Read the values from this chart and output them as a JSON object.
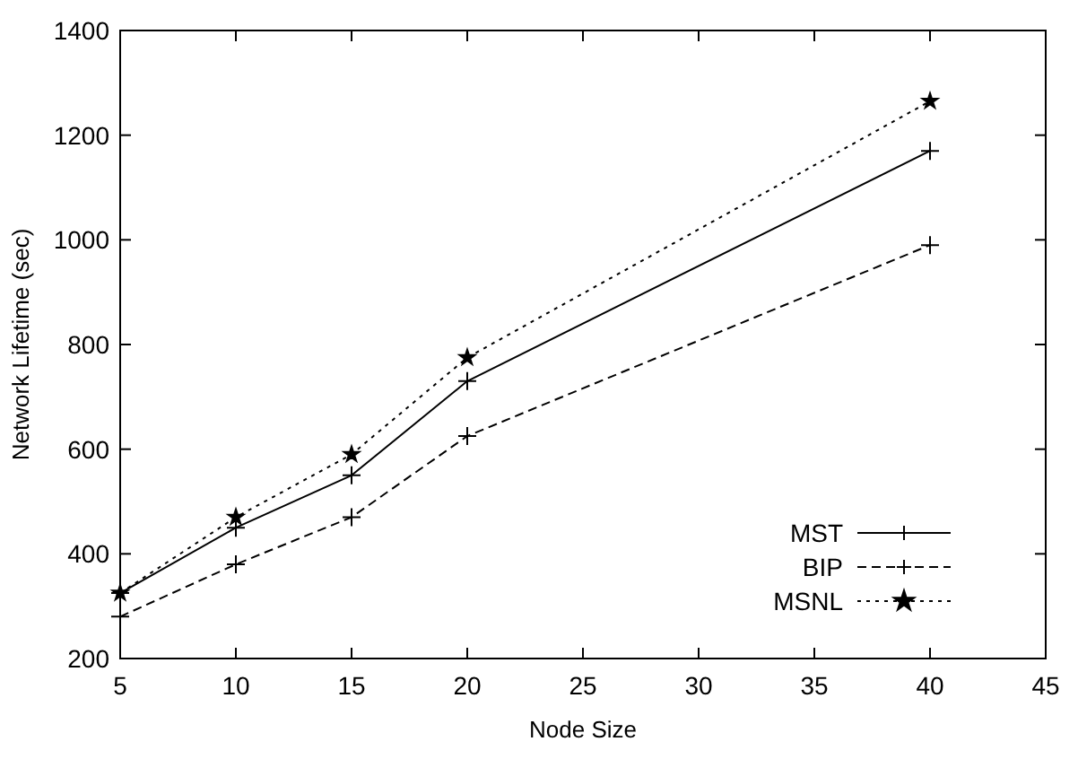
{
  "chart_data": {
    "type": "line",
    "xlabel": "Node Size",
    "ylabel": "Network Lifetime (sec)",
    "x": [
      5,
      10,
      15,
      20,
      40
    ],
    "series": [
      {
        "name": "MST",
        "color": "#000000",
        "values": [
          325,
          450,
          550,
          730,
          1170
        ],
        "line_style": "solid",
        "marker": "cross"
      },
      {
        "name": "BIP",
        "color": "#000000",
        "values": [
          280,
          380,
          470,
          625,
          990
        ],
        "line_style": "dashed",
        "marker": "cross"
      },
      {
        "name": "MSNL",
        "color": "#000000",
        "values": [
          325,
          470,
          590,
          775,
          1265
        ],
        "line_style": "dotted",
        "marker": "star"
      }
    ],
    "xlim": [
      5,
      45
    ],
    "xticks": [
      5,
      10,
      15,
      20,
      25,
      30,
      35,
      40,
      45
    ],
    "ylim": [
      200,
      1400
    ],
    "yticks": [
      200,
      400,
      600,
      800,
      1000,
      1200,
      1400
    ],
    "grid": false,
    "legend": "bottom right"
  }
}
